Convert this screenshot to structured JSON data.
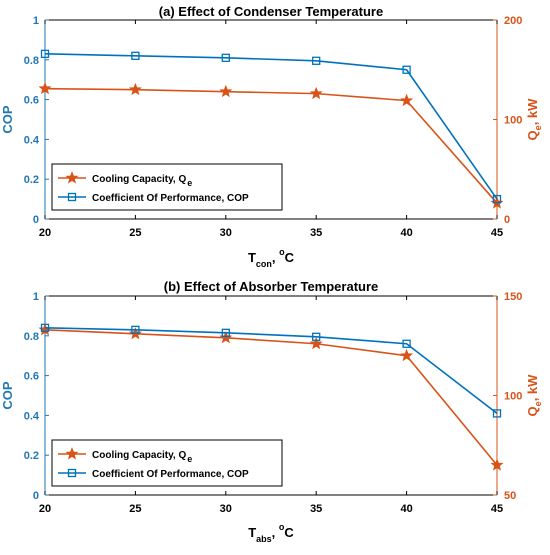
{
  "chart_data": [
    {
      "type": "line",
      "title": "(a) Effect of Condenser Temperature",
      "xlabel": {
        "main": "T",
        "sub": "con",
        "sep": ", ",
        "sup": "o",
        "unit": "C"
      },
      "ylabel_left": "COP",
      "ylabel_right": {
        "main": "Q",
        "sub": "e",
        "unit": ", kW"
      },
      "x": [
        20,
        25,
        30,
        35,
        40,
        45
      ],
      "xlim": [
        20,
        45
      ],
      "xticks": [
        "20",
        "25",
        "30",
        "35",
        "40",
        "45"
      ],
      "ylim_left": [
        0,
        1
      ],
      "yticks_left": [
        "0",
        "0.2",
        "0.4",
        "0.6",
        "0.8",
        "1"
      ],
      "ylim_right": [
        0,
        200
      ],
      "yticks_right": [
        "0",
        "100",
        "200"
      ],
      "legend_position": "bottom-left",
      "series": [
        {
          "name": "Cooling Capacity, Q",
          "name_sub": "e",
          "axis": "right",
          "color": "#d95319",
          "marker": "star",
          "values": [
            131,
            130,
            128,
            126,
            119,
            16
          ]
        },
        {
          "name": "Coefficient Of Performance, COP",
          "axis": "left",
          "color": "#0072bd",
          "marker": "square",
          "values": [
            0.83,
            0.82,
            0.81,
            0.795,
            0.75,
            0.1
          ]
        }
      ]
    },
    {
      "type": "line",
      "title": "(b) Effect of Absorber Temperature",
      "xlabel": {
        "main": "T",
        "sub": "abs",
        "sep": ", ",
        "sup": "o",
        "unit": "C"
      },
      "ylabel_left": "COP",
      "ylabel_right": {
        "main": "Q",
        "sub": "e",
        "unit": ", kW"
      },
      "x": [
        20,
        25,
        30,
        35,
        40,
        45
      ],
      "xlim": [
        20,
        45
      ],
      "xticks": [
        "20",
        "25",
        "30",
        "35",
        "40",
        "45"
      ],
      "ylim_left": [
        0,
        1
      ],
      "yticks_left": [
        "0",
        "0.2",
        "0.4",
        "0.6",
        "0.8",
        "1"
      ],
      "ylim_right": [
        50,
        150
      ],
      "yticks_right": [
        "50",
        "100",
        "150"
      ],
      "legend_position": "bottom-left",
      "series": [
        {
          "name": "Cooling Capacity, Q",
          "name_sub": "e",
          "axis": "right",
          "color": "#d95319",
          "marker": "star",
          "values": [
            133,
            131,
            129,
            126,
            120,
            65
          ]
        },
        {
          "name": "Coefficient Of Performance, COP",
          "axis": "left",
          "color": "#0072bd",
          "marker": "square",
          "values": [
            0.84,
            0.83,
            0.815,
            0.795,
            0.76,
            0.41
          ]
        }
      ]
    }
  ]
}
